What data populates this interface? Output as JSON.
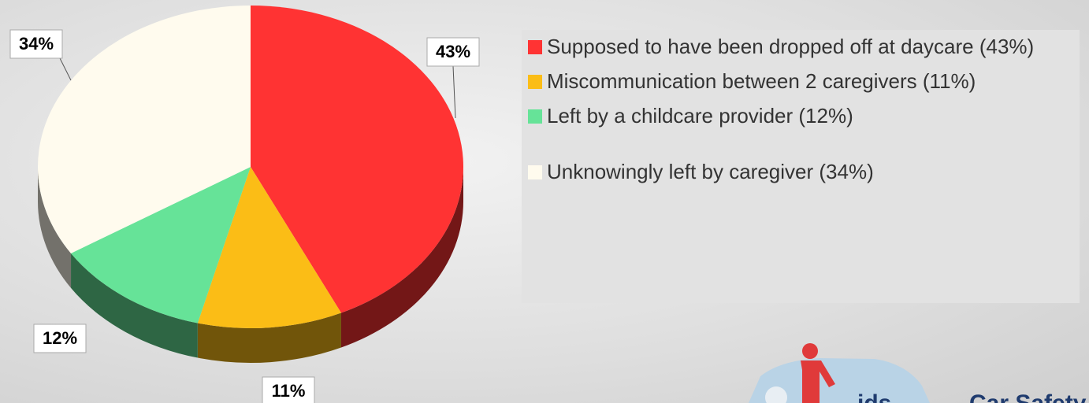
{
  "chart_data": {
    "type": "pie",
    "categories": [
      "Supposed to have been dropped off at daycare (43%)",
      "Miscommunication between 2 caregivers (11%)",
      "Left by a childcare provider (12%)",
      "Unknowingly left by caregiver (34%)"
    ],
    "values": [
      43,
      11,
      12,
      34
    ],
    "value_labels": [
      "43%",
      "11%",
      "12%",
      "34%"
    ],
    "colors": [
      "#ff3333",
      "#fbbd16",
      "#66e398",
      "#fffbee"
    ],
    "legend": "right"
  },
  "logo": {
    "text": "ids",
    "brand": "Car Safety"
  }
}
